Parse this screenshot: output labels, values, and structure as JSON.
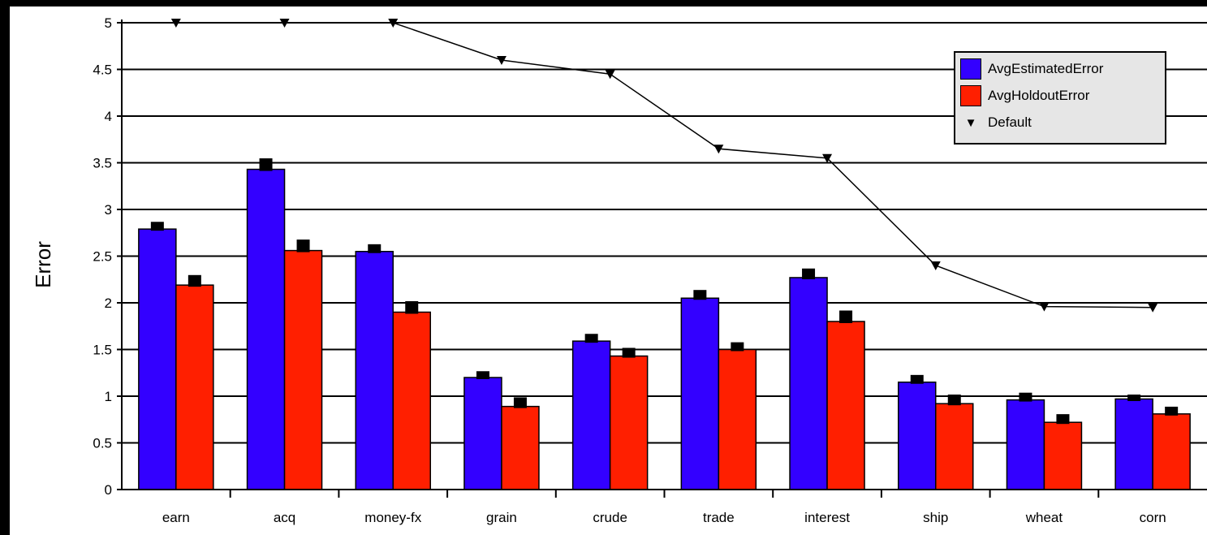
{
  "chart_data": {
    "type": "bar",
    "categories": [
      "earn",
      "acq",
      "money-fx",
      "grain",
      "crude",
      "trade",
      "interest",
      "ship",
      "wheat",
      "corn"
    ],
    "series": [
      {
        "name": "AvgEstimatedError",
        "color": "#3300ff",
        "values": [
          2.79,
          3.43,
          2.55,
          1.2,
          1.59,
          2.05,
          2.27,
          1.15,
          0.96,
          0.97
        ],
        "error_top": [
          2.85,
          3.53,
          2.61,
          1.25,
          1.65,
          2.12,
          2.35,
          1.21,
          1.02,
          1.0
        ]
      },
      {
        "name": "AvgHoldoutError",
        "color": "#ff1f00",
        "values": [
          2.19,
          2.56,
          1.9,
          0.89,
          1.43,
          1.5,
          1.8,
          0.92,
          0.72,
          0.81
        ],
        "error_top": [
          2.28,
          2.66,
          2.0,
          0.97,
          1.5,
          1.56,
          1.9,
          1.0,
          0.79,
          0.87
        ]
      }
    ],
    "line_series": {
      "name": "Default",
      "marker": "▼",
      "values": [
        5.0,
        5.0,
        5.0,
        4.6,
        4.45,
        3.65,
        3.55,
        2.4,
        1.96,
        1.95
      ]
    },
    "ylabel": "Error",
    "xlabel": "",
    "ylim": [
      0,
      5
    ],
    "yticks": [
      "0",
      "0.5",
      "1",
      "1.5",
      "2",
      "2.5",
      "3",
      "3.5",
      "4",
      "4.5",
      "5"
    ],
    "grid": true,
    "legend_position": "top-right"
  }
}
